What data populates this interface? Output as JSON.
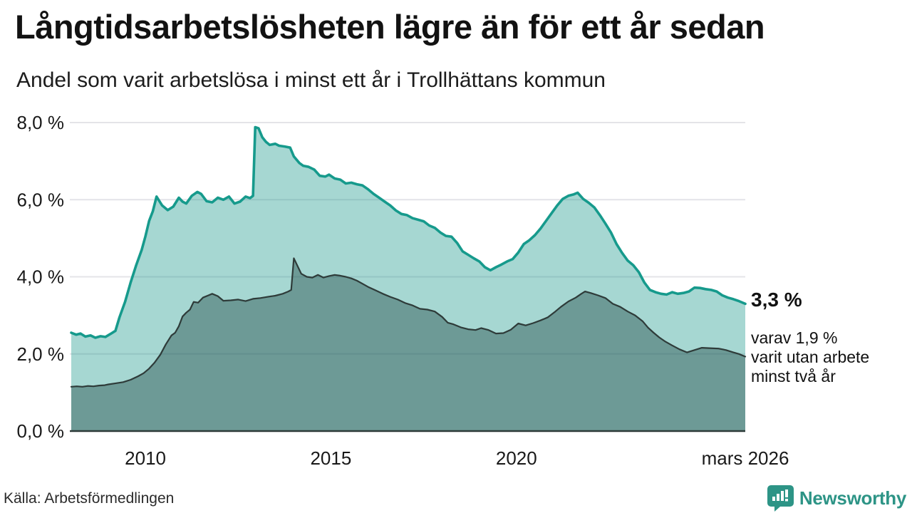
{
  "header": {
    "title": "Långtidsarbetslösheten lägre än för ett år sedan",
    "subtitle": "Andel som varit arbetslösa i minst ett år i Trollhättans kommun"
  },
  "chart_data": {
    "type": "area",
    "title": "Långtidsarbetslösheten lägre än för ett år sedan",
    "subtitle": "Andel som varit arbetslösa i minst ett år i Trollhättans kommun",
    "grid": true,
    "legend_position": "none",
    "x_axis": {
      "range": [
        2008,
        2026.17
      ],
      "ticks": [
        {
          "t": 2010,
          "label": "2010"
        },
        {
          "t": 2015,
          "label": "2015"
        },
        {
          "t": 2020,
          "label": "2020"
        },
        {
          "t": 2026.17,
          "label": "mars 2026"
        }
      ]
    },
    "y_axis": {
      "unit": "%",
      "range": [
        0,
        8
      ],
      "ticks": [
        {
          "v": 0,
          "label": "0,0 %"
        },
        {
          "v": 2,
          "label": "2,0 %"
        },
        {
          "v": 4,
          "label": "4,0 %"
        },
        {
          "v": 6,
          "label": "6,0 %"
        },
        {
          "v": 8,
          "label": "8,0 %"
        }
      ]
    },
    "series": [
      {
        "name": "minst ett år",
        "line_color": "#169a8c",
        "line_width": 3.6,
        "fill_color": "rgba(20,150,136,0.38)",
        "x": [
          2008.0,
          2008.13,
          2008.25,
          2008.38,
          2008.52,
          2008.65,
          2008.79,
          2008.92,
          2009.06,
          2009.19,
          2009.3,
          2009.45,
          2009.6,
          2009.75,
          2009.9,
          2010.0,
          2010.1,
          2010.2,
          2010.3,
          2010.45,
          2010.6,
          2010.75,
          2010.9,
          2011.0,
          2011.1,
          2011.25,
          2011.4,
          2011.5,
          2011.65,
          2011.8,
          2011.95,
          2012.1,
          2012.25,
          2012.4,
          2012.55,
          2012.7,
          2012.82,
          2012.9,
          2012.96,
          2013.05,
          2013.15,
          2013.25,
          2013.35,
          2013.5,
          2013.6,
          2013.75,
          2013.9,
          2014.0,
          2014.15,
          2014.25,
          2014.4,
          2014.55,
          2014.7,
          2014.85,
          2014.95,
          2015.1,
          2015.25,
          2015.4,
          2015.55,
          2015.7,
          2015.85,
          2016.0,
          2016.15,
          2016.3,
          2016.45,
          2016.6,
          2016.75,
          2016.9,
          2017.05,
          2017.2,
          2017.35,
          2017.5,
          2017.65,
          2017.8,
          2017.95,
          2018.1,
          2018.25,
          2018.4,
          2018.55,
          2018.7,
          2018.85,
          2019.0,
          2019.15,
          2019.3,
          2019.45,
          2019.6,
          2019.75,
          2019.9,
          2020.05,
          2020.2,
          2020.35,
          2020.5,
          2020.65,
          2020.8,
          2020.95,
          2021.1,
          2021.25,
          2021.4,
          2021.55,
          2021.65,
          2021.8,
          2021.95,
          2022.1,
          2022.25,
          2022.4,
          2022.55,
          2022.7,
          2022.85,
          2023.0,
          2023.15,
          2023.3,
          2023.45,
          2023.6,
          2023.75,
          2023.9,
          2024.05,
          2024.2,
          2024.35,
          2024.5,
          2024.65,
          2024.8,
          2024.95,
          2025.1,
          2025.25,
          2025.4,
          2025.55,
          2025.7,
          2025.85,
          2026.0,
          2026.17
        ],
        "values": [
          2.55,
          2.5,
          2.53,
          2.45,
          2.48,
          2.42,
          2.46,
          2.44,
          2.52,
          2.6,
          2.95,
          3.35,
          3.85,
          4.3,
          4.7,
          5.05,
          5.45,
          5.7,
          6.08,
          5.85,
          5.73,
          5.82,
          6.05,
          5.95,
          5.9,
          6.1,
          6.2,
          6.15,
          5.96,
          5.93,
          6.05,
          6.0,
          6.08,
          5.9,
          5.95,
          6.08,
          6.04,
          6.1,
          7.88,
          7.85,
          7.62,
          7.5,
          7.42,
          7.45,
          7.4,
          7.38,
          7.35,
          7.12,
          6.95,
          6.88,
          6.85,
          6.78,
          6.62,
          6.6,
          6.65,
          6.55,
          6.52,
          6.42,
          6.44,
          6.4,
          6.37,
          6.27,
          6.15,
          6.05,
          5.95,
          5.85,
          5.72,
          5.63,
          5.6,
          5.52,
          5.48,
          5.44,
          5.33,
          5.27,
          5.15,
          5.06,
          5.04,
          4.88,
          4.66,
          4.57,
          4.48,
          4.4,
          4.25,
          4.17,
          4.25,
          4.32,
          4.4,
          4.46,
          4.63,
          4.85,
          4.95,
          5.08,
          5.25,
          5.45,
          5.65,
          5.85,
          6.02,
          6.1,
          6.14,
          6.18,
          6.02,
          5.92,
          5.8,
          5.6,
          5.38,
          5.15,
          4.85,
          4.62,
          4.42,
          4.3,
          4.12,
          3.85,
          3.66,
          3.6,
          3.56,
          3.54,
          3.6,
          3.56,
          3.58,
          3.62,
          3.72,
          3.71,
          3.68,
          3.66,
          3.62,
          3.52,
          3.46,
          3.42,
          3.37,
          3.3
        ]
      },
      {
        "name": "minst två år",
        "line_color": "#2e3b39",
        "line_width": 2.2,
        "fill_color": "rgba(32,70,66,0.42)",
        "x": [
          2008.0,
          2008.15,
          2008.3,
          2008.45,
          2008.6,
          2008.75,
          2008.9,
          2009.0,
          2009.2,
          2009.4,
          2009.6,
          2009.8,
          2009.95,
          2010.1,
          2010.25,
          2010.4,
          2010.55,
          2010.7,
          2010.8,
          2010.9,
          2011.0,
          2011.1,
          2011.2,
          2011.3,
          2011.42,
          2011.55,
          2011.7,
          2011.8,
          2011.95,
          2012.1,
          2012.3,
          2012.5,
          2012.7,
          2012.9,
          2013.1,
          2013.3,
          2013.5,
          2013.7,
          2013.85,
          2013.93,
          2014.0,
          2014.1,
          2014.2,
          2014.35,
          2014.5,
          2014.65,
          2014.8,
          2014.95,
          2015.1,
          2015.25,
          2015.4,
          2015.55,
          2015.7,
          2015.85,
          2016.0,
          2016.2,
          2016.4,
          2016.6,
          2016.8,
          2017.0,
          2017.2,
          2017.4,
          2017.6,
          2017.8,
          2018.0,
          2018.15,
          2018.3,
          2018.5,
          2018.7,
          2018.9,
          2019.05,
          2019.25,
          2019.45,
          2019.65,
          2019.85,
          2020.05,
          2020.25,
          2020.45,
          2020.65,
          2020.85,
          2021.05,
          2021.2,
          2021.4,
          2021.6,
          2021.75,
          2021.85,
          2022.0,
          2022.2,
          2022.4,
          2022.6,
          2022.8,
          2023.0,
          2023.2,
          2023.4,
          2023.55,
          2023.7,
          2023.85,
          2024.0,
          2024.2,
          2024.4,
          2024.6,
          2024.8,
          2025.0,
          2025.2,
          2025.45,
          2025.65,
          2025.85,
          2026.0,
          2026.17
        ],
        "values": [
          1.15,
          1.16,
          1.15,
          1.17,
          1.16,
          1.18,
          1.19,
          1.21,
          1.24,
          1.27,
          1.33,
          1.42,
          1.5,
          1.62,
          1.78,
          1.98,
          2.25,
          2.48,
          2.55,
          2.72,
          2.97,
          3.07,
          3.15,
          3.35,
          3.33,
          3.46,
          3.52,
          3.56,
          3.5,
          3.38,
          3.39,
          3.41,
          3.37,
          3.43,
          3.45,
          3.48,
          3.51,
          3.56,
          3.62,
          3.66,
          4.48,
          4.28,
          4.08,
          4.0,
          3.98,
          4.05,
          3.98,
          4.02,
          4.05,
          4.03,
          4.0,
          3.96,
          3.9,
          3.82,
          3.74,
          3.65,
          3.56,
          3.48,
          3.41,
          3.32,
          3.26,
          3.17,
          3.15,
          3.1,
          2.96,
          2.81,
          2.77,
          2.69,
          2.64,
          2.62,
          2.67,
          2.62,
          2.53,
          2.54,
          2.63,
          2.79,
          2.74,
          2.8,
          2.87,
          2.95,
          3.1,
          3.22,
          3.36,
          3.46,
          3.56,
          3.62,
          3.58,
          3.52,
          3.45,
          3.3,
          3.22,
          3.1,
          3.0,
          2.85,
          2.68,
          2.55,
          2.43,
          2.33,
          2.22,
          2.12,
          2.04,
          2.1,
          2.16,
          2.15,
          2.14,
          2.1,
          2.04,
          2.0,
          1.93
        ]
      }
    ],
    "annotations": {
      "latest_total": "3,3 %",
      "secondary_lines": [
        "varav 1,9 %",
        "varit utan arbete",
        "minst två år"
      ]
    },
    "style": {
      "gridline_color": "#e4e4e8",
      "baseline_color": "#2e3b39",
      "tick_label_color": "#191919",
      "tick_font_size": 26
    }
  },
  "footer": {
    "source": "Källa: Arbetsförmedlingen",
    "brand": "Newsworthy",
    "brand_icon": "newsworthy-chart-pin-icon",
    "brand_color": "#2d9486"
  }
}
